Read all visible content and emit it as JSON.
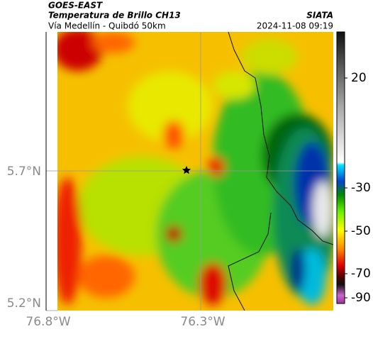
{
  "header": {
    "title": "GOES-EAST",
    "subtitle": "Temperatura de Brillo CH13",
    "route": "Vía Medellín - Quibdó 50km",
    "source": "SIATA",
    "timestamp": "2024-11-08 09:19"
  },
  "map": {
    "y_labels": [
      "5.7°N",
      "5.2°N"
    ],
    "x_labels": [
      "76.8°W",
      "76.3°W"
    ]
  },
  "colorbar": {
    "ticks": [
      20,
      -30,
      -50,
      -70,
      -90
    ]
  }
}
